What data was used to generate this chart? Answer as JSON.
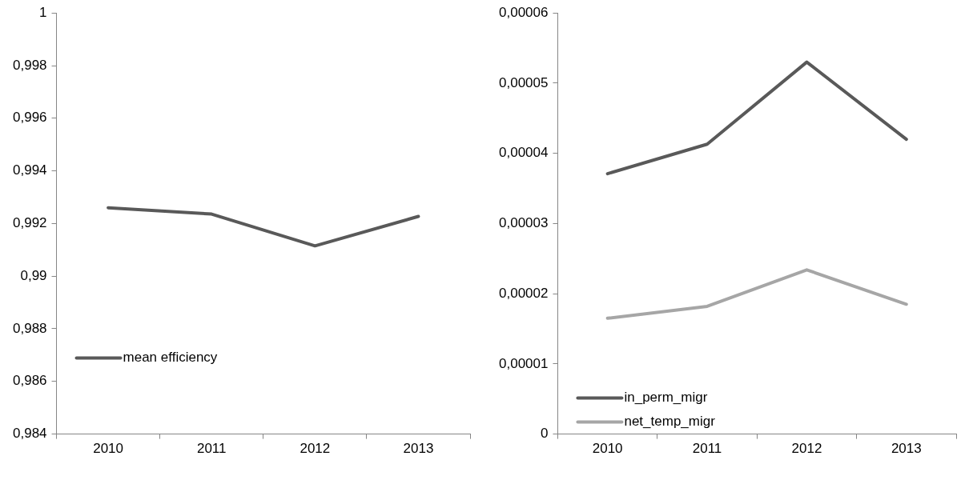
{
  "chart_data": [
    {
      "type": "line",
      "categories": [
        "2010",
        "2011",
        "2012",
        "2013"
      ],
      "series": [
        {
          "name": "mean efficiency",
          "color": "#595959",
          "values": [
            0.9926,
            0.99236,
            0.99115,
            0.99227
          ]
        }
      ],
      "ylim": [
        0.984,
        1
      ],
      "yticks": [
        {
          "value": 0.984,
          "label": "0,984"
        },
        {
          "value": 0.986,
          "label": "0,986"
        },
        {
          "value": 0.988,
          "label": "0,988"
        },
        {
          "value": 0.99,
          "label": "0,99"
        },
        {
          "value": 0.992,
          "label": "0,992"
        },
        {
          "value": 0.994,
          "label": "0,994"
        },
        {
          "value": 0.996,
          "label": "0,996"
        },
        {
          "value": 0.998,
          "label": "0,998"
        },
        1
      ],
      "grid": false,
      "legend": "bottom left",
      "marker": "none",
      "line_style": "solid"
    },
    {
      "type": "line",
      "categories": [
        "2010",
        "2011",
        "2012",
        "2013"
      ],
      "series": [
        {
          "name": "in_perm_migr",
          "color": "#595959",
          "values": [
            3.71e-05,
            4.13e-05,
            5.3e-05,
            4.2e-05
          ]
        },
        {
          "name": "net_temp_migr",
          "color": "#a6a6a6",
          "values": [
            1.65e-05,
            1.82e-05,
            2.34e-05,
            1.85e-05
          ]
        }
      ],
      "ylim": [
        0,
        6e-05
      ],
      "yticks": [
        0,
        {
          "value": 1e-05,
          "label": "0,00001"
        },
        {
          "value": 2e-05,
          "label": "0,00002"
        },
        {
          "value": 3e-05,
          "label": "0,00003"
        },
        {
          "value": 4e-05,
          "label": "0,00004"
        },
        {
          "value": 5e-05,
          "label": "0,00005"
        },
        {
          "value": 6e-05,
          "label": "0,00006"
        }
      ],
      "grid": false,
      "legend": "bottom left",
      "marker": "none",
      "line_style": "solid"
    }
  ]
}
